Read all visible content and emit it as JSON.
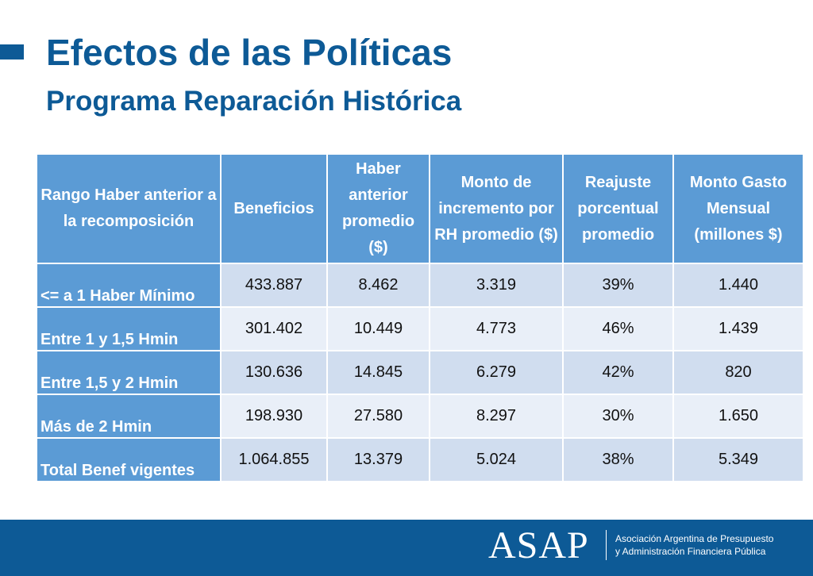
{
  "header": {
    "title": "Efectos de las Políticas",
    "subtitle": "Programa Reparación Histórica"
  },
  "table": {
    "headers": [
      "Rango Haber anterior a la recomposición",
      "Beneficios",
      "Haber anterior promedio ($)",
      "Monto de incremento por RH promedio ($)",
      "Reajuste porcentual promedio",
      "Monto Gasto Mensual (millones $)"
    ],
    "rows": [
      {
        "label": "<= a 1 Haber Mínimo",
        "values": [
          "433.887",
          "8.462",
          "3.319",
          "39%",
          "1.440"
        ]
      },
      {
        "label": "Entre 1 y 1,5 Hmin",
        "values": [
          "301.402",
          "10.449",
          "4.773",
          "46%",
          "1.439"
        ]
      },
      {
        "label": "Entre 1,5 y 2 Hmin",
        "values": [
          "130.636",
          "14.845",
          "6.279",
          "42%",
          "820"
        ]
      },
      {
        "label": "Más de 2 Hmin",
        "values": [
          "198.930",
          "27.580",
          "8.297",
          "30%",
          "1.650"
        ]
      },
      {
        "label": "Total Benef vigentes",
        "values": [
          "1.064.855",
          "13.379",
          "5.024",
          "38%",
          "5.349"
        ]
      }
    ]
  },
  "footer": {
    "logo": "ASAP",
    "org_line1": "Asociación Argentina de Presupuesto",
    "org_line2": "y Administración Financiera Pública"
  },
  "colors": {
    "brand": "#0d5a96",
    "header_cell": "#5b9bd5",
    "row_odd": "#d0ddef",
    "row_even": "#e9eff8"
  }
}
